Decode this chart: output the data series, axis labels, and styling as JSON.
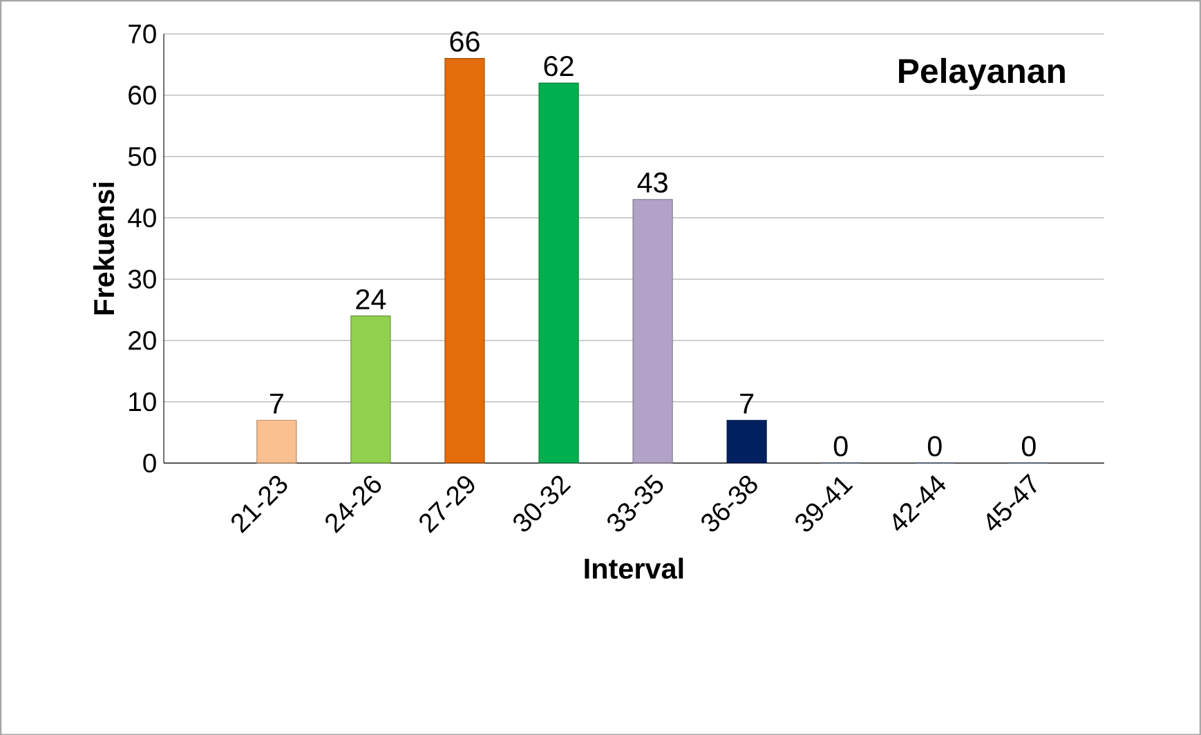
{
  "chart_data": {
    "type": "bar",
    "title": "Pelayanan",
    "xlabel": "Interval",
    "ylabel": "Frekuensi",
    "categories": [
      "21-23",
      "24-26",
      "27-29",
      "30-32",
      "33-35",
      "36-38",
      "39-41",
      "42-44",
      "45-47"
    ],
    "values": [
      7,
      24,
      66,
      62,
      43,
      7,
      0,
      0,
      0
    ],
    "colors": [
      "#fac090",
      "#92d050",
      "#e46c0a",
      "#00b050",
      "#b3a2c7",
      "#002060",
      "#4f81bd",
      "#4f81bd",
      "#4f81bd"
    ],
    "ylim": [
      0,
      70
    ],
    "yticks": [
      0,
      10,
      20,
      30,
      40,
      50,
      60,
      70
    ],
    "grid": "y",
    "data_labels": true
  }
}
